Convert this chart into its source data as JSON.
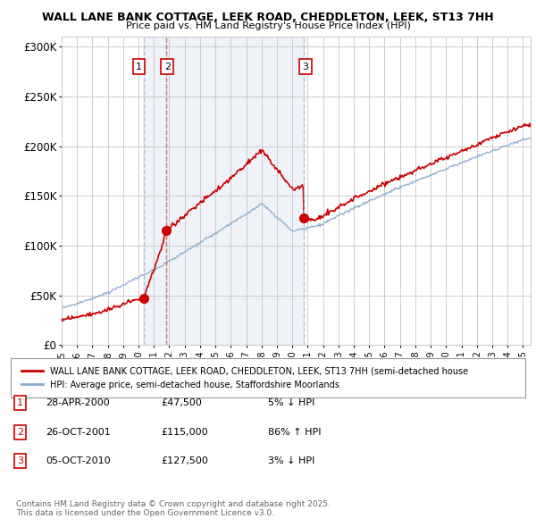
{
  "title1": "WALL LANE BANK COTTAGE, LEEK ROAD, CHEDDLETON, LEEK, ST13 7HH",
  "title2": "Price paid vs. HM Land Registry's House Price Index (HPI)",
  "yticks": [
    0,
    50000,
    100000,
    150000,
    200000,
    250000,
    300000
  ],
  "ytick_labels": [
    "£0",
    "£50K",
    "£100K",
    "£150K",
    "£200K",
    "£250K",
    "£300K"
  ],
  "xlim_start": 1995.0,
  "xlim_end": 2025.5,
  "ylim": [
    0,
    310000
  ],
  "sale_dates": [
    2000.32,
    2001.82,
    2010.76
  ],
  "sale_prices": [
    47500,
    115000,
    127500
  ],
  "sale_labels": [
    "1",
    "2",
    "3"
  ],
  "vline1_color": "#aabbdd",
  "vline2_color": "#cc0000",
  "vline_alpha": 0.6,
  "shade_color": "#ddeeff",
  "shade_alpha": 0.5,
  "sale_marker_color": "#cc0000",
  "hpi_line_color": "#88aacc",
  "price_line_color": "#cc0000",
  "legend_label_red": "WALL LANE BANK COTTAGE, LEEK ROAD, CHEDDLETON, LEEK, ST13 7HH (semi-detached house",
  "legend_label_blue": "HPI: Average price, semi-detached house, Staffordshire Moorlands",
  "table_entries": [
    {
      "num": "1",
      "date": "28-APR-2000",
      "price": "£47,500",
      "change": "5% ↓ HPI"
    },
    {
      "num": "2",
      "date": "26-OCT-2001",
      "price": "£115,000",
      "change": "86% ↑ HPI"
    },
    {
      "num": "3",
      "date": "05-OCT-2010",
      "price": "£127,500",
      "change": "3% ↓ HPI"
    }
  ],
  "footer": "Contains HM Land Registry data © Crown copyright and database right 2025.\nThis data is licensed under the Open Government Licence v3.0.",
  "bg_color": "#ffffff",
  "grid_color": "#cccccc"
}
